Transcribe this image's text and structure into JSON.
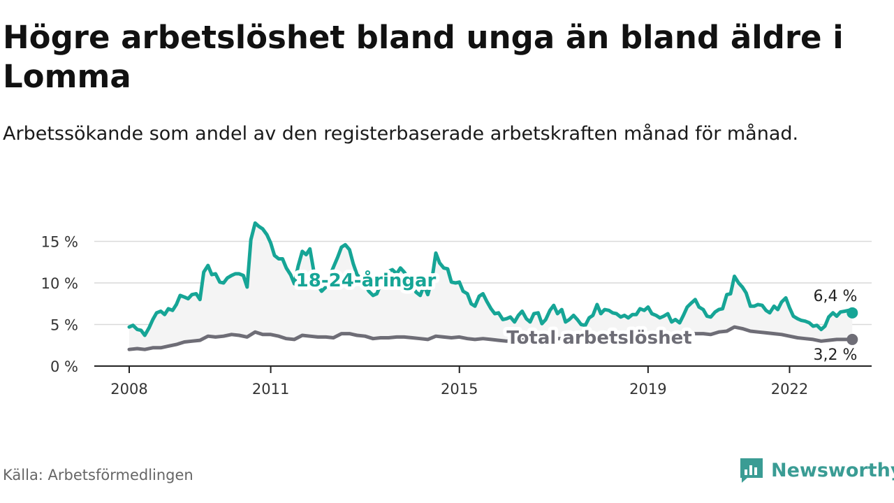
{
  "title": "Högre arbetslöshet bland unga än bland äldre i Lomma",
  "subtitle": "Arbetssökande som andel av den registerbaserade arbetskraften månad för månad.",
  "source": "Källa: Arbetsförmedlingen",
  "brand": "Newsworthy",
  "colors": {
    "youth": "#16a596",
    "total": "#6e6d76",
    "grid": "#d9d9d9",
    "area": "#f4f4f4",
    "brand": "#3a9c94"
  },
  "chart_data": {
    "type": "line",
    "title": "Högre arbetslöshet bland unga än bland äldre i Lomma",
    "xlabel": "",
    "ylabel": "",
    "ylim": [
      0,
      17.5
    ],
    "xlim": [
      2008.0,
      2023.0
    ],
    "y_ticks": [
      {
        "value": 0,
        "label": "0 %"
      },
      {
        "value": 5,
        "label": "5 %"
      },
      {
        "value": 10,
        "label": "10 %"
      },
      {
        "value": 15,
        "label": "15 %"
      }
    ],
    "x_ticks": [
      {
        "value": 2008,
        "label": "2008"
      },
      {
        "value": 2011,
        "label": "2011"
      },
      {
        "value": 2015,
        "label": "2015"
      },
      {
        "value": 2019,
        "label": "2019"
      },
      {
        "value": 2022,
        "label": "2022"
      }
    ],
    "series": [
      {
        "name": "18-24-åringar",
        "label": "18-24-åringar",
        "end_label": "6,4 %",
        "points": [
          [
            2008.0,
            4.7
          ],
          [
            2008.08,
            4.9
          ],
          [
            2008.17,
            4.4
          ],
          [
            2008.25,
            4.3
          ],
          [
            2008.33,
            3.7
          ],
          [
            2008.42,
            4.6
          ],
          [
            2008.5,
            5.6
          ],
          [
            2008.58,
            6.4
          ],
          [
            2008.67,
            6.6
          ],
          [
            2008.75,
            6.2
          ],
          [
            2008.83,
            6.9
          ],
          [
            2008.92,
            6.7
          ],
          [
            2009.0,
            7.4
          ],
          [
            2009.08,
            8.5
          ],
          [
            2009.17,
            8.3
          ],
          [
            2009.25,
            8.1
          ],
          [
            2009.33,
            8.6
          ],
          [
            2009.42,
            8.7
          ],
          [
            2009.5,
            8.0
          ],
          [
            2009.58,
            11.3
          ],
          [
            2009.67,
            12.1
          ],
          [
            2009.75,
            11.0
          ],
          [
            2009.83,
            11.1
          ],
          [
            2009.92,
            10.1
          ],
          [
            2010.0,
            10.0
          ],
          [
            2010.08,
            10.6
          ],
          [
            2010.17,
            10.9
          ],
          [
            2010.25,
            11.1
          ],
          [
            2010.33,
            11.1
          ],
          [
            2010.42,
            10.9
          ],
          [
            2010.5,
            9.5
          ],
          [
            2010.58,
            15.2
          ],
          [
            2010.67,
            17.2
          ],
          [
            2010.75,
            16.8
          ],
          [
            2010.83,
            16.5
          ],
          [
            2010.92,
            15.8
          ],
          [
            2011.0,
            14.8
          ],
          [
            2011.08,
            13.3
          ],
          [
            2011.17,
            12.9
          ],
          [
            2011.25,
            12.9
          ],
          [
            2011.33,
            11.8
          ],
          [
            2011.42,
            11.0
          ],
          [
            2011.5,
            9.9
          ],
          [
            2011.58,
            12.0
          ],
          [
            2011.67,
            13.8
          ],
          [
            2011.75,
            13.4
          ],
          [
            2011.83,
            14.1
          ],
          [
            2011.92,
            11.2
          ],
          [
            2012.0,
            9.7
          ],
          [
            2012.08,
            9.0
          ],
          [
            2012.17,
            9.5
          ],
          [
            2012.25,
            10.8
          ],
          [
            2012.33,
            11.9
          ],
          [
            2012.42,
            13.1
          ],
          [
            2012.5,
            14.3
          ],
          [
            2012.58,
            14.6
          ],
          [
            2012.67,
            14.0
          ],
          [
            2012.75,
            12.3
          ],
          [
            2012.83,
            11.0
          ],
          [
            2012.92,
            10.5
          ],
          [
            2013.0,
            9.8
          ],
          [
            2013.08,
            9.0
          ],
          [
            2013.17,
            8.5
          ],
          [
            2013.25,
            8.7
          ],
          [
            2013.33,
            9.8
          ],
          [
            2013.42,
            10.8
          ],
          [
            2013.5,
            11.4
          ],
          [
            2013.58,
            11.6
          ],
          [
            2013.67,
            11.1
          ],
          [
            2013.75,
            11.8
          ],
          [
            2013.83,
            11.3
          ],
          [
            2013.92,
            10.6
          ],
          [
            2014.0,
            9.8
          ],
          [
            2014.08,
            8.9
          ],
          [
            2014.17,
            8.5
          ],
          [
            2014.25,
            9.7
          ],
          [
            2014.33,
            8.6
          ],
          [
            2014.42,
            10.5
          ],
          [
            2014.5,
            13.6
          ],
          [
            2014.58,
            12.4
          ],
          [
            2014.67,
            11.8
          ],
          [
            2014.75,
            11.7
          ],
          [
            2014.83,
            10.1
          ],
          [
            2014.92,
            10.0
          ],
          [
            2015.0,
            10.1
          ],
          [
            2015.08,
            9.0
          ],
          [
            2015.17,
            8.7
          ],
          [
            2015.25,
            7.5
          ],
          [
            2015.33,
            7.2
          ],
          [
            2015.42,
            8.4
          ],
          [
            2015.5,
            8.7
          ],
          [
            2015.58,
            7.8
          ],
          [
            2015.67,
            6.9
          ],
          [
            2015.75,
            6.3
          ],
          [
            2015.83,
            6.4
          ],
          [
            2015.92,
            5.6
          ],
          [
            2016.0,
            5.7
          ],
          [
            2016.08,
            5.9
          ],
          [
            2016.17,
            5.3
          ],
          [
            2016.25,
            6.1
          ],
          [
            2016.33,
            6.6
          ],
          [
            2016.42,
            5.7
          ],
          [
            2016.5,
            5.3
          ],
          [
            2016.58,
            6.3
          ],
          [
            2016.67,
            6.4
          ],
          [
            2016.75,
            5.1
          ],
          [
            2016.83,
            5.6
          ],
          [
            2016.92,
            6.7
          ],
          [
            2017.0,
            7.3
          ],
          [
            2017.08,
            6.3
          ],
          [
            2017.17,
            6.8
          ],
          [
            2017.25,
            5.3
          ],
          [
            2017.33,
            5.6
          ],
          [
            2017.42,
            6.1
          ],
          [
            2017.5,
            5.6
          ],
          [
            2017.58,
            5.0
          ],
          [
            2017.67,
            4.9
          ],
          [
            2017.75,
            5.8
          ],
          [
            2017.83,
            6.1
          ],
          [
            2017.92,
            7.4
          ],
          [
            2018.0,
            6.3
          ],
          [
            2018.08,
            6.8
          ],
          [
            2018.17,
            6.7
          ],
          [
            2018.25,
            6.4
          ],
          [
            2018.33,
            6.3
          ],
          [
            2018.42,
            5.9
          ],
          [
            2018.5,
            6.1
          ],
          [
            2018.58,
            5.8
          ],
          [
            2018.67,
            6.2
          ],
          [
            2018.75,
            6.2
          ],
          [
            2018.83,
            6.9
          ],
          [
            2018.92,
            6.7
          ],
          [
            2019.0,
            7.1
          ],
          [
            2019.08,
            6.3
          ],
          [
            2019.17,
            6.1
          ],
          [
            2019.25,
            5.8
          ],
          [
            2019.33,
            6.0
          ],
          [
            2019.42,
            6.3
          ],
          [
            2019.5,
            5.3
          ],
          [
            2019.58,
            5.6
          ],
          [
            2019.67,
            5.2
          ],
          [
            2019.75,
            6.1
          ],
          [
            2019.83,
            7.1
          ],
          [
            2019.92,
            7.6
          ],
          [
            2020.0,
            8.0
          ],
          [
            2020.08,
            7.1
          ],
          [
            2020.17,
            6.8
          ],
          [
            2020.25,
            6.0
          ],
          [
            2020.33,
            5.9
          ],
          [
            2020.42,
            6.5
          ],
          [
            2020.5,
            6.8
          ],
          [
            2020.58,
            6.9
          ],
          [
            2020.67,
            8.6
          ],
          [
            2020.75,
            8.7
          ],
          [
            2020.83,
            10.8
          ],
          [
            2020.92,
            10.0
          ],
          [
            2021.0,
            9.5
          ],
          [
            2021.08,
            8.8
          ],
          [
            2021.17,
            7.2
          ],
          [
            2021.25,
            7.2
          ],
          [
            2021.33,
            7.4
          ],
          [
            2021.42,
            7.3
          ],
          [
            2021.5,
            6.7
          ],
          [
            2021.58,
            6.4
          ],
          [
            2021.67,
            7.2
          ],
          [
            2021.75,
            6.8
          ],
          [
            2021.83,
            7.7
          ],
          [
            2021.92,
            8.2
          ],
          [
            2022.0,
            7.0
          ],
          [
            2022.08,
            6.0
          ],
          [
            2022.17,
            5.7
          ],
          [
            2022.25,
            5.5
          ],
          [
            2022.33,
            5.4
          ],
          [
            2022.42,
            5.2
          ],
          [
            2022.5,
            4.8
          ],
          [
            2022.58,
            4.9
          ],
          [
            2022.67,
            4.4
          ],
          [
            2022.75,
            4.8
          ],
          [
            2022.83,
            5.9
          ],
          [
            2022.92,
            6.4
          ],
          [
            2023.0,
            6.0
          ],
          [
            2023.08,
            6.5
          ],
          [
            2023.17,
            6.6
          ],
          [
            2023.25,
            6.7
          ],
          [
            2023.33,
            6.4
          ]
        ]
      },
      {
        "name": "Total arbetslöshet",
        "label": "Total arbetslöshet",
        "end_label": "3,2 %",
        "points": [
          [
            2008.0,
            2.0
          ],
          [
            2008.17,
            2.1
          ],
          [
            2008.33,
            2.0
          ],
          [
            2008.5,
            2.2
          ],
          [
            2008.67,
            2.2
          ],
          [
            2008.83,
            2.4
          ],
          [
            2009.0,
            2.6
          ],
          [
            2009.17,
            2.9
          ],
          [
            2009.33,
            3.0
          ],
          [
            2009.5,
            3.1
          ],
          [
            2009.67,
            3.6
          ],
          [
            2009.83,
            3.5
          ],
          [
            2010.0,
            3.6
          ],
          [
            2010.17,
            3.8
          ],
          [
            2010.33,
            3.7
          ],
          [
            2010.5,
            3.5
          ],
          [
            2010.67,
            4.1
          ],
          [
            2010.83,
            3.8
          ],
          [
            2011.0,
            3.8
          ],
          [
            2011.17,
            3.6
          ],
          [
            2011.33,
            3.3
          ],
          [
            2011.5,
            3.2
          ],
          [
            2011.67,
            3.7
          ],
          [
            2011.83,
            3.6
          ],
          [
            2012.0,
            3.5
          ],
          [
            2012.17,
            3.5
          ],
          [
            2012.33,
            3.4
          ],
          [
            2012.5,
            3.9
          ],
          [
            2012.67,
            3.9
          ],
          [
            2012.83,
            3.7
          ],
          [
            2013.0,
            3.6
          ],
          [
            2013.17,
            3.3
          ],
          [
            2013.33,
            3.4
          ],
          [
            2013.5,
            3.4
          ],
          [
            2013.67,
            3.5
          ],
          [
            2013.83,
            3.5
          ],
          [
            2014.0,
            3.4
          ],
          [
            2014.17,
            3.3
          ],
          [
            2014.33,
            3.2
          ],
          [
            2014.5,
            3.6
          ],
          [
            2014.67,
            3.5
          ],
          [
            2014.83,
            3.4
          ],
          [
            2015.0,
            3.5
          ],
          [
            2015.17,
            3.3
          ],
          [
            2015.33,
            3.2
          ],
          [
            2015.5,
            3.3
          ],
          [
            2015.67,
            3.2
          ],
          [
            2015.83,
            3.1
          ],
          [
            2016.0,
            3.0
          ],
          [
            2016.17,
            3.1
          ],
          [
            2016.33,
            3.2
          ],
          [
            2016.5,
            3.1
          ],
          [
            2016.67,
            3.2
          ],
          [
            2016.83,
            3.2
          ],
          [
            2017.0,
            3.3
          ],
          [
            2017.17,
            3.3
          ],
          [
            2017.33,
            3.4
          ],
          [
            2017.5,
            3.5
          ],
          [
            2017.67,
            3.5
          ],
          [
            2017.83,
            3.6
          ],
          [
            2018.0,
            3.6
          ],
          [
            2018.17,
            3.5
          ],
          [
            2018.33,
            3.5
          ],
          [
            2018.5,
            3.6
          ],
          [
            2018.67,
            3.6
          ],
          [
            2018.83,
            3.6
          ],
          [
            2019.0,
            3.7
          ],
          [
            2019.17,
            3.7
          ],
          [
            2019.33,
            3.8
          ],
          [
            2019.5,
            3.8
          ],
          [
            2019.67,
            3.9
          ],
          [
            2019.83,
            4.0
          ],
          [
            2020.0,
            3.9
          ],
          [
            2020.17,
            3.9
          ],
          [
            2020.33,
            3.8
          ],
          [
            2020.5,
            4.1
          ],
          [
            2020.67,
            4.2
          ],
          [
            2020.83,
            4.7
          ],
          [
            2021.0,
            4.5
          ],
          [
            2021.17,
            4.2
          ],
          [
            2021.33,
            4.1
          ],
          [
            2021.5,
            4.0
          ],
          [
            2021.67,
            3.9
          ],
          [
            2021.83,
            3.8
          ],
          [
            2022.0,
            3.6
          ],
          [
            2022.17,
            3.4
          ],
          [
            2022.33,
            3.3
          ],
          [
            2022.5,
            3.2
          ],
          [
            2022.67,
            3.0
          ],
          [
            2022.83,
            3.1
          ],
          [
            2023.0,
            3.2
          ],
          [
            2023.17,
            3.2
          ],
          [
            2023.33,
            3.2
          ]
        ]
      }
    ]
  }
}
